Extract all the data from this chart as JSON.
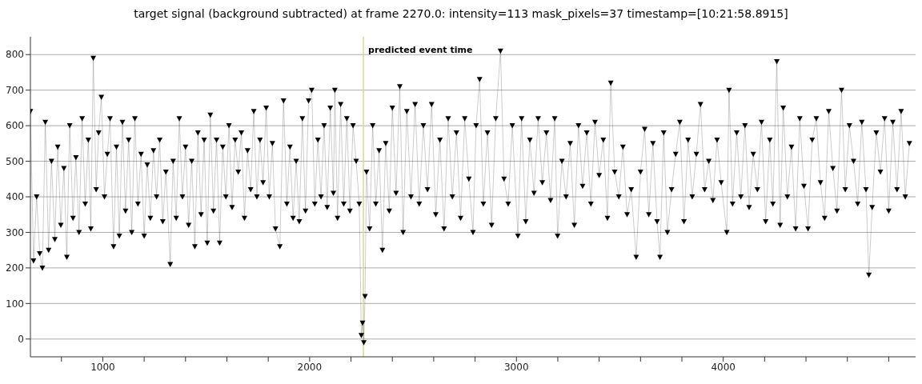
{
  "chart_data": {
    "type": "line",
    "title": "target signal (background subtracted) at frame 2270.0: intensity=113 mask_pixels=37 timestamp=[10:21:58.8915]",
    "x": [
      650,
      665,
      680,
      695,
      708,
      722,
      738,
      752,
      768,
      782,
      797,
      812,
      826,
      840,
      856,
      870,
      885,
      900,
      915,
      930,
      942,
      954,
      968,
      980,
      993,
      1008,
      1022,
      1035,
      1052,
      1066,
      1080,
      1095,
      1110,
      1125,
      1140,
      1155,
      1170,
      1185,
      1200,
      1215,
      1230,
      1245,
      1260,
      1275,
      1290,
      1305,
      1326,
      1340,
      1355,
      1370,
      1385,
      1400,
      1415,
      1430,
      1445,
      1460,
      1475,
      1490,
      1505,
      1520,
      1535,
      1550,
      1565,
      1580,
      1595,
      1610,
      1625,
      1640,
      1655,
      1670,
      1685,
      1700,
      1715,
      1730,
      1745,
      1760,
      1775,
      1790,
      1805,
      1820,
      1835,
      1856,
      1874,
      1890,
      1905,
      1920,
      1935,
      1950,
      1965,
      1980,
      1995,
      2010,
      2025,
      2040,
      2055,
      2070,
      2085,
      2100,
      2115,
      2122,
      2135,
      2150,
      2165,
      2180,
      2195,
      2210,
      2225,
      2240,
      2250,
      2256,
      2262,
      2268,
      2275,
      2290,
      2305,
      2320,
      2336,
      2352,
      2368,
      2385,
      2400,
      2418,
      2436,
      2452,
      2470,
      2490,
      2510,
      2530,
      2550,
      2570,
      2590,
      2610,
      2630,
      2650,
      2670,
      2690,
      2710,
      2730,
      2750,
      2770,
      2790,
      2805,
      2822,
      2840,
      2860,
      2880,
      2900,
      2923,
      2940,
      2960,
      2980,
      3007,
      3025,
      3045,
      3065,
      3085,
      3105,
      3125,
      3145,
      3165,
      3185,
      3199,
      3220,
      3240,
      3260,
      3280,
      3300,
      3320,
      3340,
      3360,
      3380,
      3400,
      3420,
      3440,
      3456,
      3475,
      3495,
      3515,
      3535,
      3555,
      3579,
      3600,
      3620,
      3640,
      3660,
      3680,
      3694,
      3712,
      3730,
      3750,
      3770,
      3790,
      3810,
      3830,
      3850,
      3870,
      3890,
      3910,
      3930,
      3950,
      3970,
      3990,
      4017,
      4028,
      4045,
      4065,
      4085,
      4105,
      4125,
      4145,
      4165,
      4185,
      4205,
      4225,
      4240,
      4259,
      4275,
      4290,
      4310,
      4330,
      4350,
      4370,
      4390,
      4410,
      4430,
      4450,
      4470,
      4490,
      4510,
      4530,
      4550,
      4572,
      4590,
      4610,
      4630,
      4650,
      4670,
      4690,
      4704,
      4720,
      4740,
      4760,
      4780,
      4800,
      4820,
      4840,
      4860,
      4880,
      4900
    ],
    "series": [
      {
        "color": "#000000",
        "values": [
          640,
          220,
          400,
          240,
          200,
          610,
          250,
          500,
          280,
          540,
          320,
          480,
          230,
          600,
          340,
          510,
          300,
          620,
          380,
          560,
          310,
          790,
          420,
          580,
          680,
          400,
          520,
          620,
          260,
          540,
          290,
          610,
          360,
          560,
          300,
          620,
          380,
          520,
          290,
          490,
          340,
          530,
          400,
          560,
          330,
          470,
          210,
          500,
          340,
          620,
          400,
          540,
          320,
          500,
          260,
          580,
          350,
          560,
          270,
          630,
          360,
          560,
          270,
          540,
          400,
          600,
          370,
          560,
          470,
          580,
          340,
          530,
          420,
          640,
          400,
          560,
          440,
          650,
          400,
          550,
          310,
          260,
          670,
          380,
          540,
          340,
          500,
          330,
          620,
          360,
          670,
          700,
          380,
          560,
          400,
          600,
          370,
          650,
          410,
          700,
          340,
          660,
          380,
          620,
          360,
          600,
          500,
          380,
          10,
          45,
          -10,
          120,
          470,
          310,
          600,
          380,
          530,
          250,
          550,
          360,
          650,
          410,
          710,
          300,
          640,
          400,
          660,
          380,
          600,
          420,
          660,
          350,
          560,
          310,
          620,
          400,
          580,
          340,
          620,
          450,
          300,
          600,
          730,
          380,
          580,
          320,
          620,
          810,
          450,
          380,
          600,
          290,
          620,
          330,
          560,
          410,
          620,
          440,
          580,
          390,
          620,
          290,
          500,
          400,
          550,
          320,
          600,
          430,
          580,
          380,
          610,
          460,
          560,
          340,
          720,
          470,
          400,
          540,
          350,
          420,
          230,
          470,
          590,
          350,
          550,
          330,
          230,
          580,
          300,
          420,
          520,
          610,
          330,
          560,
          400,
          520,
          660,
          420,
          500,
          390,
          560,
          440,
          300,
          700,
          380,
          580,
          400,
          600,
          370,
          520,
          420,
          610,
          330,
          560,
          380,
          780,
          320,
          650,
          400,
          540,
          310,
          620,
          430,
          310,
          560,
          620,
          440,
          340,
          640,
          480,
          360,
          700,
          420,
          600,
          500,
          380,
          610,
          420,
          180,
          370,
          580,
          470,
          620,
          360,
          610,
          420,
          640,
          400,
          550
        ]
      }
    ],
    "xlim": [
      650,
      4930
    ],
    "xticks": [
      {
        "value": 800,
        "label": null
      },
      1000,
      {
        "value": 1200,
        "label": null
      },
      {
        "value": 1400,
        "label": null
      },
      {
        "value": 1600,
        "label": null
      },
      {
        "value": 1800,
        "label": null
      },
      2000,
      {
        "value": 2200,
        "label": null
      },
      {
        "value": 2400,
        "label": null
      },
      {
        "value": 2600,
        "label": null
      },
      {
        "value": 2800,
        "label": null
      },
      3000,
      {
        "value": 3200,
        "label": null
      },
      {
        "value": 3400,
        "label": null
      },
      {
        "value": 3600,
        "label": null
      },
      {
        "value": 3800,
        "label": null
      },
      4000,
      {
        "value": 4200,
        "label": null
      },
      {
        "value": 4400,
        "label": null
      },
      {
        "value": 4600,
        "label": null
      },
      {
        "value": 4800,
        "label": null
      }
    ],
    "ylim": [
      -50,
      850
    ],
    "yticks": [
      0,
      100,
      200,
      300,
      400,
      500,
      600,
      700,
      800
    ],
    "grid": "y",
    "marker": "triangle",
    "line_style": "solid",
    "ref_lines": [
      {
        "axis": "x",
        "value": 2260,
        "label": "predicted event time",
        "color": "#d8d890"
      }
    ]
  }
}
